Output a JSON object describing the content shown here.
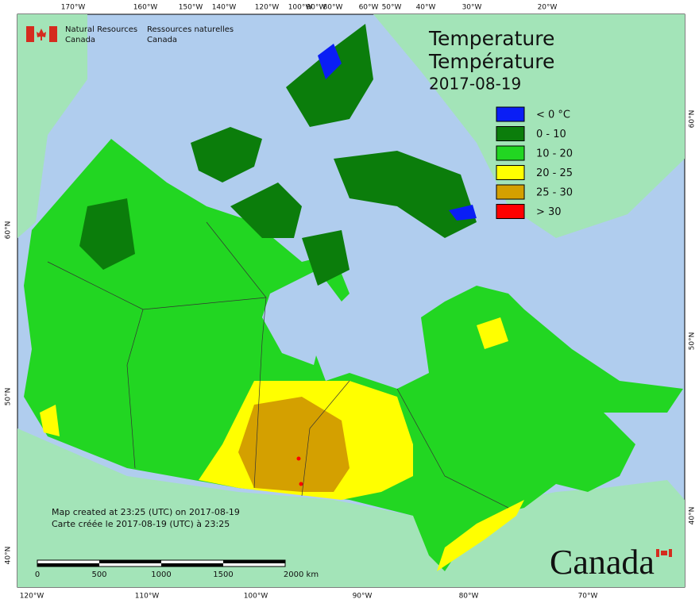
{
  "header": {
    "agency_en": [
      "Natural Resources",
      "Canada"
    ],
    "agency_fr": [
      "Ressources naturelles",
      "Canada"
    ]
  },
  "title": [
    "Temperature",
    "Température",
    "2017-08-19"
  ],
  "legend": [
    {
      "label": "< 0 °C",
      "color": "#0a1ef5"
    },
    {
      "label": "0 - 10",
      "color": "#0b7d0b"
    },
    {
      "label": "10 - 20",
      "color": "#22d622"
    },
    {
      "label": "20 - 25",
      "color": "#ffff00"
    },
    {
      "label": "25 - 30",
      "color": "#d4a000"
    },
    {
      "label": "> 30",
      "color": "#ff0000"
    }
  ],
  "graticule": {
    "top": [
      "170°W",
      "160°W",
      "150°W",
      "140°W",
      "120°W",
      "100°W",
      "90°W",
      "80°W",
      "60°W",
      "50°W",
      "40°W",
      "30°W",
      "20°W"
    ],
    "bottom": [
      "120°W",
      "110°W",
      "100°W",
      "90°W",
      "80°W",
      "70°W"
    ],
    "left": [
      "60°N",
      "50°N",
      "40°N"
    ],
    "right": [
      "60°N",
      "50°N",
      "40°N"
    ]
  },
  "credit": [
    "Map created at 23:25 (UTC) on 2017-08-19",
    "Carte créée le 2017-08-19 (UTC) à 23:25"
  ],
  "scale_bar": [
    "0",
    "500",
    "1000",
    "1500",
    "2000 km"
  ],
  "wordmark": "Canada"
}
